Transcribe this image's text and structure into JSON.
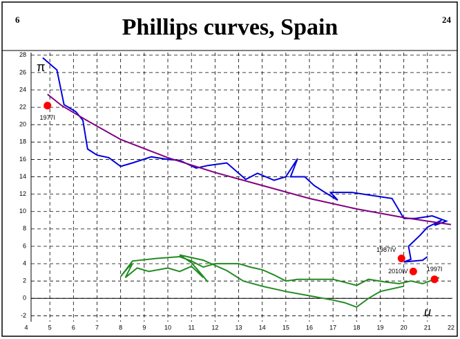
{
  "chart_data": {
    "type": "line",
    "title": "Phillips curves, Spain",
    "page_number": "6",
    "total_pages": "24",
    "y_label": "π",
    "x_label": "u",
    "xlim": [
      4,
      22
    ],
    "xticks": [
      4,
      5,
      6,
      7,
      8,
      9,
      10,
      11,
      12,
      13,
      14,
      15,
      16,
      17,
      18,
      19,
      20,
      21,
      22
    ],
    "ylim": [
      -3.4,
      28.3
    ],
    "yticks": [
      -2,
      0,
      2,
      4,
      6,
      8,
      10,
      12,
      14,
      16,
      18,
      20,
      22,
      24,
      26,
      28
    ],
    "grid": true,
    "series": [
      {
        "color": "#0000dd",
        "x": [
          4.7,
          5.3,
          5.6,
          6.1,
          6.4,
          6.6,
          7,
          7.5,
          8,
          8.5,
          9.3,
          10,
          10.5,
          11.2,
          11.7,
          12.5,
          13.3,
          13.8,
          14.5,
          15,
          15.5,
          15.2,
          15.8,
          16.2,
          16.6,
          17.2,
          16.9,
          17.8,
          19.5,
          20,
          20.5,
          21.2,
          21.8,
          21.3,
          21.6,
          21,
          20.7,
          20.2,
          20.3,
          20,
          20.8,
          21
        ],
        "values": [
          27.7,
          26.3,
          22.3,
          21.5,
          20.5,
          17.2,
          16.5,
          16.2,
          15.2,
          15.6,
          16.3,
          16,
          15.9,
          15,
          15.3,
          15.6,
          13.7,
          14.4,
          13.6,
          14,
          16.1,
          14,
          14,
          13,
          12.3,
          11.3,
          12.2,
          12.2,
          11.5,
          9.2,
          9.2,
          9.5,
          8.9,
          8.4,
          9,
          8.2,
          7.3,
          6,
          4.5,
          4.2,
          4.4,
          4.8
        ]
      },
      {
        "color": "#228b22",
        "x": [
          21.5,
          21.2,
          20.8,
          20.3,
          19.8,
          19.2,
          18.5,
          18,
          17,
          15.5,
          15,
          14.5,
          14,
          13.5,
          13,
          12,
          11.5,
          11,
          10.5,
          9.5,
          8.5,
          8,
          8.3,
          8.5,
          8.2,
          8.7,
          9.2,
          10,
          10.5,
          11,
          11.5,
          11.2,
          11.7,
          11,
          10.5,
          11.5,
          12.5,
          13.2,
          14,
          15,
          16,
          17,
          17.5,
          18,
          18.5,
          19,
          20
        ],
        "values": [
          2.4,
          2.1,
          1.7,
          2,
          1.7,
          1.9,
          2.2,
          1.5,
          2.2,
          2.2,
          2,
          2.7,
          3.3,
          3.6,
          4,
          4,
          3.6,
          4.3,
          4.8,
          4.6,
          4.3,
          2.5,
          3.5,
          4,
          2.4,
          3.5,
          3.1,
          3.5,
          3.1,
          3.7,
          2.4,
          3.5,
          1.9,
          4.1,
          5,
          4.4,
          3.2,
          2,
          1.4,
          0.8,
          0.3,
          -0.2,
          -0.5,
          -1,
          0,
          0.8,
          1.4
        ]
      },
      {
        "color": "#800080",
        "x": [
          4.9,
          5.5,
          6.5,
          8,
          10,
          12,
          14,
          16,
          18,
          20,
          22
        ],
        "values": [
          23.5,
          22.2,
          20.6,
          18.3,
          16.2,
          14.5,
          13,
          11.5,
          10.3,
          9.3,
          8.5
        ]
      }
    ],
    "points": [
      {
        "x": 4.9,
        "y": 22.2,
        "label": "1977I"
      },
      {
        "x": 19.9,
        "y": 4.6,
        "label": "1987IV"
      },
      {
        "x": 20.4,
        "y": 3.1,
        "label": "2010IV"
      },
      {
        "x": 21.3,
        "y": 2.2,
        "label": "1997I"
      }
    ],
    "point_color": "#ff0000"
  }
}
